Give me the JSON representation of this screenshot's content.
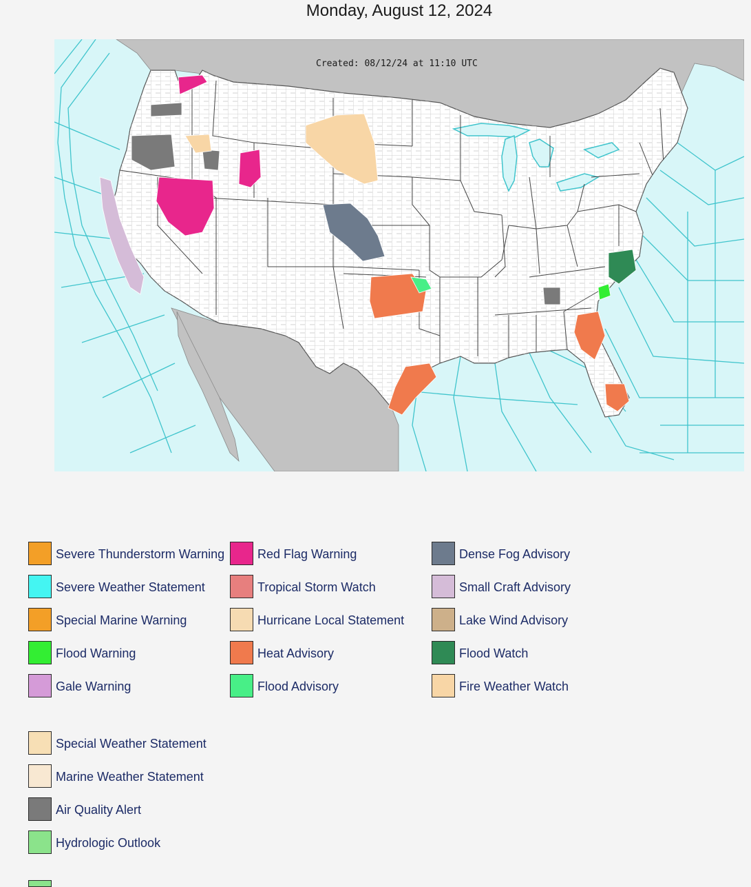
{
  "page": {
    "title": "Monday, August 12, 2024"
  },
  "map": {
    "created_label": "Created: 08/12/24 at 11:10 UTC",
    "colors": {
      "ocean": "#d8f6f8",
      "land": "#ffffff",
      "foreign_land": "#c2c2c2",
      "marine_zone_lines": "#3fc4cc",
      "county_lines": "#bdbdbd",
      "state_lines": "#444444"
    }
  },
  "legend": {
    "grid_items": [
      {
        "label": "Severe Thunderstorm Warning",
        "color": "#f39f27"
      },
      {
        "label": "Red Flag Warning",
        "color": "#e8268c"
      },
      {
        "label": "Dense Fog Advisory",
        "color": "#6d7b8d"
      },
      {
        "label": "Severe Weather Statement",
        "color": "#44f5f2"
      },
      {
        "label": "Tropical Storm Watch",
        "color": "#e77f7e"
      },
      {
        "label": "Small Craft Advisory",
        "color": "#d5bcd8"
      },
      {
        "label": "Special Marine Warning",
        "color": "#f39f27"
      },
      {
        "label": "Hurricane Local Statement",
        "color": "#f6dbb2"
      },
      {
        "label": "Lake Wind Advisory",
        "color": "#cdb08a"
      },
      {
        "label": "Flood Warning",
        "color": "#33ee33"
      },
      {
        "label": "Heat Advisory",
        "color": "#f07a4d"
      },
      {
        "label": "Flood Watch",
        "color": "#2f8a55"
      },
      {
        "label": "Gale Warning",
        "color": "#d59bd8"
      },
      {
        "label": "Flood Advisory",
        "color": "#48ef87"
      },
      {
        "label": "Fire Weather Watch",
        "color": "#f8d6a6"
      }
    ],
    "single_items": [
      {
        "label": "Special Weather Statement",
        "color": "#f7dfb5"
      },
      {
        "label": "Marine Weather Statement",
        "color": "#f8e8d2"
      },
      {
        "label": "Air Quality Alert",
        "color": "#7a7a7a"
      },
      {
        "label": "Hydrologic Outlook",
        "color": "#8be38b"
      }
    ]
  }
}
